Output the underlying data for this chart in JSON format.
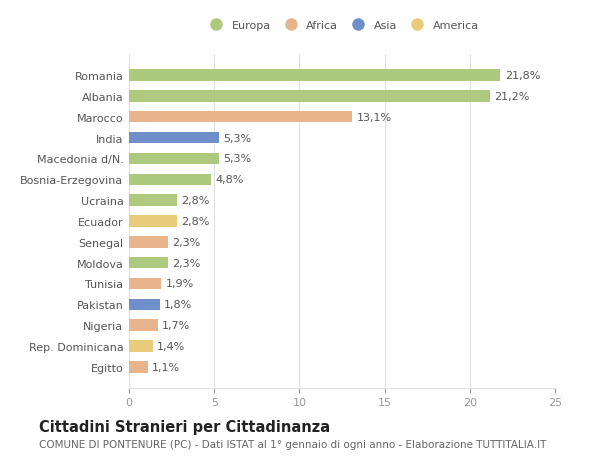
{
  "countries": [
    "Romania",
    "Albania",
    "Marocco",
    "India",
    "Macedonia d/N.",
    "Bosnia-Erzegovina",
    "Ucraina",
    "Ecuador",
    "Senegal",
    "Moldova",
    "Tunisia",
    "Pakistan",
    "Nigeria",
    "Rep. Dominicana",
    "Egitto"
  ],
  "values": [
    21.8,
    21.2,
    13.1,
    5.3,
    5.3,
    4.8,
    2.8,
    2.8,
    2.3,
    2.3,
    1.9,
    1.8,
    1.7,
    1.4,
    1.1
  ],
  "labels": [
    "21,8%",
    "21,2%",
    "13,1%",
    "5,3%",
    "5,3%",
    "4,8%",
    "2,8%",
    "2,8%",
    "2,3%",
    "2,3%",
    "1,9%",
    "1,8%",
    "1,7%",
    "1,4%",
    "1,1%"
  ],
  "colors": [
    "#adc97e",
    "#adc97e",
    "#e8b48c",
    "#6e8fc9",
    "#adc97e",
    "#adc97e",
    "#adc97e",
    "#e8cc7a",
    "#e8b48c",
    "#adc97e",
    "#e8b48c",
    "#6e8fc9",
    "#e8b48c",
    "#e8cc7a",
    "#e8b48c"
  ],
  "legend_labels": [
    "Europa",
    "Africa",
    "Asia",
    "America"
  ],
  "legend_colors": [
    "#adc97e",
    "#e8b48c",
    "#6e8fc9",
    "#e8cc7a"
  ],
  "xlim": [
    0,
    25
  ],
  "xticks": [
    0,
    5,
    10,
    15,
    20,
    25
  ],
  "title": "Cittadini Stranieri per Cittadinanza",
  "subtitle": "COMUNE DI PONTENURE (PC) - Dati ISTAT al 1° gennaio di ogni anno - Elaborazione TUTTITALIA.IT",
  "background_color": "#ffffff",
  "grid_color": "#e0e0e0",
  "bar_height": 0.55,
  "label_fontsize": 8.0,
  "tick_fontsize": 8.0,
  "title_fontsize": 10.5,
  "subtitle_fontsize": 7.5
}
